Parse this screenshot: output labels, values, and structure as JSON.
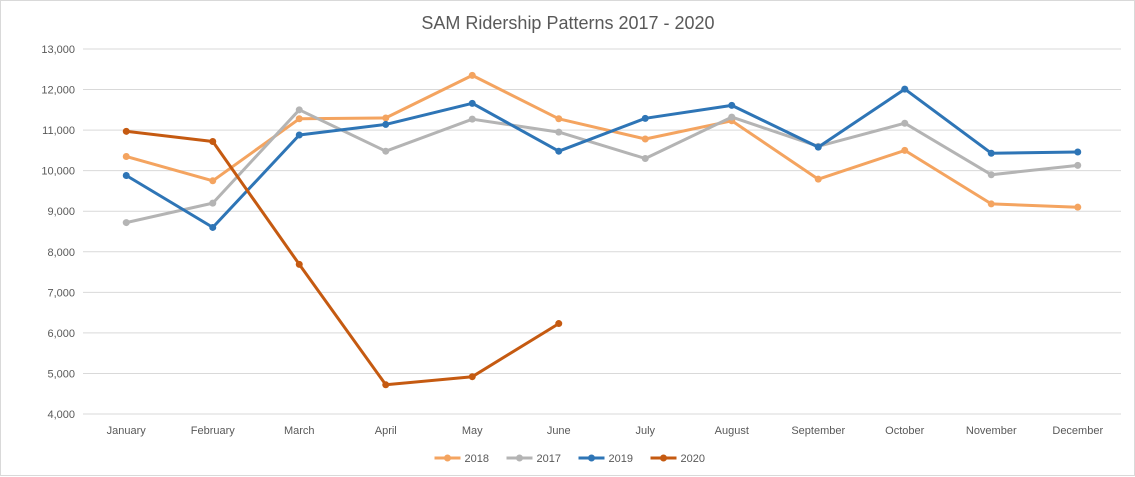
{
  "chart_data": {
    "type": "line",
    "title": "SAM Ridership Patterns 2017 - 2020",
    "xlabel": "",
    "ylabel": "",
    "categories": [
      "January",
      "February",
      "March",
      "April",
      "May",
      "June",
      "July",
      "August",
      "September",
      "October",
      "November",
      "December"
    ],
    "ylim": [
      4000,
      13000
    ],
    "yticks": [
      4000,
      5000,
      6000,
      7000,
      8000,
      9000,
      10000,
      11000,
      12000,
      13000
    ],
    "ytick_labels": [
      "4,000",
      "5,000",
      "6,000",
      "7,000",
      "8,000",
      "9,000",
      "10,000",
      "11,000",
      "12,000",
      "13,000"
    ],
    "grid": true,
    "legend_position": "bottom",
    "series": [
      {
        "name": "2018",
        "color": "#F4A460",
        "values": [
          10350,
          9750,
          11280,
          11300,
          12350,
          11280,
          10780,
          11230,
          9790,
          10500,
          9180,
          9100
        ]
      },
      {
        "name": "2017",
        "color": "#B4B4B4",
        "values": [
          8720,
          9200,
          11500,
          10480,
          11270,
          10950,
          10300,
          11320,
          10600,
          11170,
          9900,
          10130
        ]
      },
      {
        "name": "2019",
        "color": "#2E75B6",
        "values": [
          9880,
          8600,
          10880,
          11140,
          11660,
          10480,
          11290,
          11610,
          10580,
          12010,
          10430,
          10460
        ]
      },
      {
        "name": "2020",
        "color": "#C55A11",
        "values": [
          10970,
          10720,
          7690,
          4720,
          4920,
          6230,
          null,
          null,
          null,
          null,
          null,
          null
        ]
      }
    ]
  }
}
